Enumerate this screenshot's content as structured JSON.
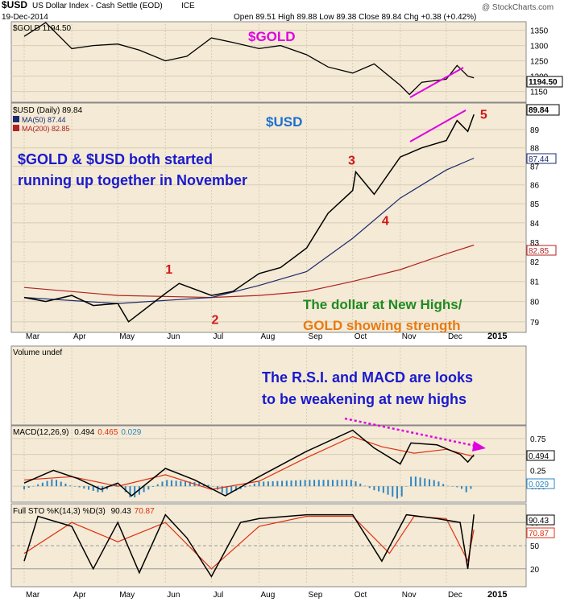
{
  "header": {
    "symbol": "$USD",
    "description": "US Dollar Index - Cash Settle (EOD)",
    "exchange": "ICE",
    "date": "19-Dec-2014",
    "ohlc": "Open 89.51  High 89.88  Low 89.38  Close 89.84  Chg +0.38 (+0.42%)",
    "copyright": "@ StockCharts.com"
  },
  "colors": {
    "panel_bg": "#f4ead6",
    "price_line": "#000000",
    "ma50": "#1a2a6e",
    "ma200": "#b22222",
    "magenta": "#e000e0",
    "annotation_blue": "#1a1acc",
    "annotation_green": "#1f8a1f",
    "annotation_orange": "#e87a10",
    "count_red": "#d01818",
    "volume_bar": "#2e86c1",
    "macd_line": "#000000",
    "signal_line": "#e03010",
    "usd_label": "#1a6fd1"
  },
  "x_labels": [
    "Mar",
    "Apr",
    "May",
    "Jun",
    "Jul",
    "Aug",
    "Sep",
    "Oct",
    "Nov",
    "Dec",
    "2015"
  ],
  "x_label_dates": [
    "2014-03-01",
    "2014-04-01",
    "2014-05-01",
    "2014-06-01",
    "2014-07-01",
    "2014-08-01",
    "2014-09-01",
    "2014-10-01",
    "2014-11-01",
    "2014-12-01",
    "2015-01-01"
  ],
  "gold_panel": {
    "legend": "$GOLD 1194.50",
    "title": "$GOLD",
    "last": "1194.50",
    "ticks": [
      "1350",
      "1300",
      "1250",
      "1200",
      "1150"
    ]
  },
  "usd_panel": {
    "legend_price": "$USD (Daily) 89.84",
    "legend_ma50": "MA(50) 87.44",
    "legend_ma200": "MA(200) 82.85",
    "title": "$USD",
    "last": "89.84",
    "ma50_tag": "87.44",
    "ma200_tag": "82.85",
    "ticks": [
      "89",
      "88",
      "87",
      "86",
      "85",
      "84",
      "83",
      "82",
      "81",
      "80",
      "79"
    ],
    "note1_line1": "$GOLD & $USD both started",
    "note1_line2": "running up together in November",
    "note2_line1": "The dollar at New Highs/",
    "note2_line2": "GOLD showing strength",
    "counts": [
      "1",
      "2",
      "3",
      "4",
      "5"
    ]
  },
  "volume_panel": {
    "legend": "Volume undef",
    "note_line1": "The R.S.I. and MACD are looks",
    "note_line2": "to be weakening at new highs"
  },
  "macd_panel": {
    "legend_prefix": "MACD(12,26,9)",
    "macd": "0.494",
    "signal": "0.465",
    "hist": "0.029",
    "ticks": [
      "0.75",
      "0.50",
      "0.25",
      "0.00"
    ],
    "tag_macd": "0.494",
    "tag_hist": "0.029"
  },
  "sto_panel": {
    "legend_prefix": "Full STO %K(14,3) %D(3)",
    "k": "90.43",
    "d": "70.87",
    "ticks": [
      "80",
      "50",
      "20"
    ],
    "tag_k": "90.43",
    "tag_d": "70.87"
  },
  "chart_data": [
    {
      "type": "line",
      "title": "$GOLD",
      "legend": "$GOLD 1194.50",
      "x": [
        "2014-03-01",
        "2014-03-15",
        "2014-04-01",
        "2014-04-15",
        "2014-05-01",
        "2014-05-15",
        "2014-06-01",
        "2014-06-15",
        "2014-07-01",
        "2014-07-15",
        "2014-08-01",
        "2014-08-15",
        "2014-09-01",
        "2014-09-15",
        "2014-10-01",
        "2014-10-15",
        "2014-11-01",
        "2014-11-07",
        "2014-11-15",
        "2014-12-01",
        "2014-12-08",
        "2014-12-15",
        "2014-12-19"
      ],
      "values": [
        1330,
        1375,
        1290,
        1300,
        1305,
        1285,
        1250,
        1265,
        1325,
        1310,
        1290,
        1300,
        1270,
        1230,
        1210,
        1240,
        1170,
        1140,
        1180,
        1190,
        1235,
        1200,
        1194.5
      ],
      "ylim": [
        1120,
        1370
      ]
    },
    {
      "type": "line",
      "title": "$USD",
      "series": [
        {
          "name": "$USD (Daily) 89.84",
          "x": [
            "2014-03-01",
            "2014-03-15",
            "2014-04-01",
            "2014-04-15",
            "2014-05-01",
            "2014-05-08",
            "2014-06-01",
            "2014-06-10",
            "2014-07-01",
            "2014-07-15",
            "2014-08-01",
            "2014-08-15",
            "2014-09-01",
            "2014-09-15",
            "2014-10-01",
            "2014-10-03",
            "2014-10-15",
            "2014-11-01",
            "2014-11-15",
            "2014-12-01",
            "2014-12-08",
            "2014-12-15",
            "2014-12-19"
          ],
          "values": [
            80.2,
            80.0,
            80.3,
            79.8,
            79.9,
            79.0,
            80.4,
            80.9,
            80.3,
            80.5,
            81.4,
            81.7,
            82.7,
            84.5,
            85.7,
            86.7,
            85.5,
            87.5,
            88.0,
            88.4,
            89.5,
            88.9,
            89.84
          ]
        },
        {
          "name": "MA(50) 87.44",
          "x": [
            "2014-03-01",
            "2014-05-01",
            "2014-07-01",
            "2014-08-01",
            "2014-09-01",
            "2014-10-01",
            "2014-11-01",
            "2014-12-01",
            "2014-12-19"
          ],
          "values": [
            80.2,
            79.9,
            80.2,
            80.8,
            81.5,
            83.2,
            85.3,
            86.8,
            87.44
          ]
        },
        {
          "name": "MA(200) 82.85",
          "x": [
            "2014-03-01",
            "2014-05-01",
            "2014-07-01",
            "2014-08-01",
            "2014-09-01",
            "2014-10-01",
            "2014-11-01",
            "2014-12-01",
            "2014-12-19"
          ],
          "values": [
            80.7,
            80.3,
            80.2,
            80.3,
            80.5,
            81.0,
            81.6,
            82.4,
            82.85
          ]
        }
      ],
      "ylim": [
        78.6,
        90.3
      ],
      "annotations": [
        {
          "label": "1",
          "x": "2014-06-01",
          "y": 81.4
        },
        {
          "label": "2",
          "x": "2014-07-01",
          "y": 78.9
        },
        {
          "label": "3",
          "x": "2014-09-28",
          "y": 87.1
        },
        {
          "label": "4",
          "x": "2014-10-20",
          "y": 83.9
        },
        {
          "label": "5",
          "x": "2014-12-23",
          "y": 89.6
        }
      ]
    },
    {
      "type": "line",
      "title": "MACD(12,26,9)",
      "series": [
        {
          "name": "MACD 0.494",
          "x": [
            "2014-03-01",
            "2014-03-20",
            "2014-04-05",
            "2014-04-20",
            "2014-05-01",
            "2014-05-10",
            "2014-06-01",
            "2014-06-20",
            "2014-07-10",
            "2014-08-01",
            "2014-09-01",
            "2014-10-01",
            "2014-10-15",
            "2014-11-01",
            "2014-11-08",
            "2014-11-25",
            "2014-12-10",
            "2014-12-15",
            "2014-12-19"
          ],
          "values": [
            0.05,
            0.25,
            0.12,
            -0.05,
            0.05,
            -0.15,
            0.28,
            0.1,
            -0.15,
            0.15,
            0.55,
            0.88,
            0.6,
            0.35,
            0.68,
            0.65,
            0.5,
            0.38,
            0.494
          ]
        },
        {
          "name": "Signal 0.465",
          "x": [
            "2014-03-01",
            "2014-04-01",
            "2014-05-01",
            "2014-06-01",
            "2014-07-01",
            "2014-08-01",
            "2014-09-01",
            "2014-10-01",
            "2014-10-20",
            "2014-11-10",
            "2014-12-01",
            "2014-12-19"
          ],
          "values": [
            0.1,
            0.15,
            0.0,
            0.18,
            -0.05,
            0.08,
            0.45,
            0.78,
            0.62,
            0.52,
            0.58,
            0.465
          ]
        }
      ],
      "ylim": [
        -0.2,
        0.9
      ]
    },
    {
      "type": "line",
      "title": "Full STO %K(14,3) %D(3)",
      "series": [
        {
          "name": "%K 90.43",
          "x": [
            "2014-03-01",
            "2014-03-10",
            "2014-04-01",
            "2014-04-15",
            "2014-05-01",
            "2014-05-15",
            "2014-06-01",
            "2014-06-15",
            "2014-07-01",
            "2014-07-20",
            "2014-08-01",
            "2014-09-01",
            "2014-10-01",
            "2014-10-20",
            "2014-11-05",
            "2014-11-25",
            "2014-12-10",
            "2014-12-15",
            "2014-12-19"
          ],
          "values": [
            30,
            88,
            75,
            20,
            80,
            15,
            90,
            60,
            10,
            80,
            85,
            90,
            90,
            30,
            90,
            85,
            80,
            20,
            90.43
          ]
        },
        {
          "name": "%D 70.87",
          "x": [
            "2014-03-01",
            "2014-04-01",
            "2014-05-01",
            "2014-06-01",
            "2014-07-01",
            "2014-08-01",
            "2014-09-01",
            "2014-10-01",
            "2014-10-25",
            "2014-11-10",
            "2014-12-01",
            "2014-12-15",
            "2014-12-19"
          ],
          "values": [
            40,
            80,
            55,
            80,
            20,
            75,
            88,
            88,
            40,
            88,
            85,
            30,
            70.87
          ]
        }
      ],
      "ylim": [
        0,
        100
      ]
    }
  ]
}
